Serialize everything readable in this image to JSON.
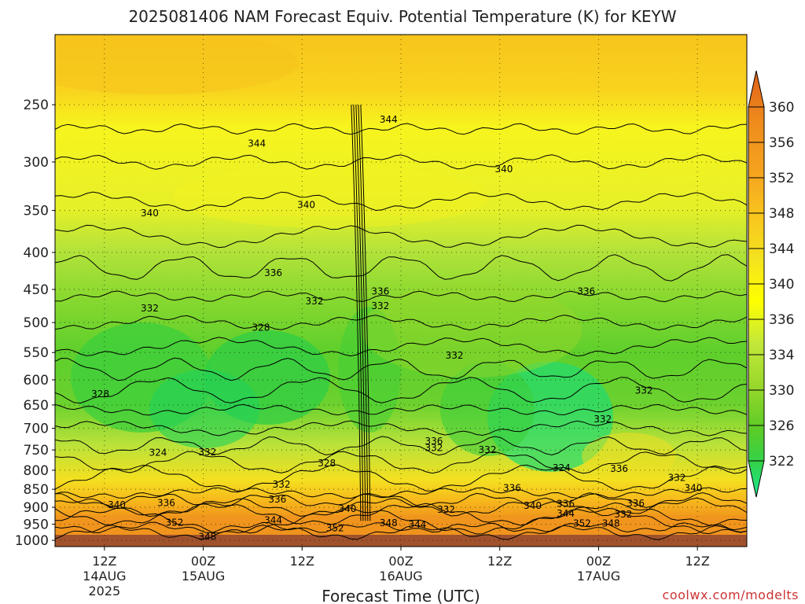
{
  "chart_data": {
    "type": "heatmap",
    "title": "2025081406 NAM Forecast Equiv. Potential Temperature (K) for KEYW",
    "xlabel": "Forecast Time (UTC)",
    "ylabel": "",
    "credit": "coolwx.com/modelts",
    "x_ticks": [
      {
        "hour": 6,
        "line1": "12Z",
        "line2": "14AUG",
        "line3": "2025"
      },
      {
        "hour": 18,
        "line1": "00Z",
        "line2": "15AUG",
        "line3": ""
      },
      {
        "hour": 30,
        "line1": "12Z",
        "line2": "",
        "line3": ""
      },
      {
        "hour": 42,
        "line1": "00Z",
        "line2": "16AUG",
        "line3": ""
      },
      {
        "hour": 54,
        "line1": "12Z",
        "line2": "",
        "line3": ""
      },
      {
        "hour": 66,
        "line1": "00Z",
        "line2": "17AUG",
        "line3": ""
      },
      {
        "hour": 78,
        "line1": "12Z",
        "line2": "",
        "line3": ""
      }
    ],
    "x_range_hours": [
      0,
      84
    ],
    "y_ticks": [
      250,
      300,
      350,
      400,
      450,
      500,
      550,
      600,
      650,
      700,
      750,
      800,
      850,
      900,
      950,
      1000
    ],
    "y_range_hpa": [
      200,
      1020
    ],
    "y_scale": "log-pressure",
    "grid": true,
    "colorbar": {
      "labels": [
        360,
        356,
        352,
        348,
        344,
        340,
        336,
        334,
        330,
        326,
        322
      ],
      "colors": [
        "#e0601a",
        "#ef8c1c",
        "#f5a41e",
        "#f8c51d",
        "#f3e21f",
        "#ffff00",
        "#c2e83a",
        "#98d82a",
        "#5ccc26",
        "#33d24a",
        "#1ee890"
      ]
    },
    "contour_labels": [
      {
        "text": "344",
        "hour": 40.5,
        "p": 262
      },
      {
        "text": "344",
        "hour": 24.5,
        "p": 283
      },
      {
        "text": "340",
        "hour": 54.5,
        "p": 307
      },
      {
        "text": "340",
        "hour": 11.5,
        "p": 353
      },
      {
        "text": "340",
        "hour": 30.5,
        "p": 344
      },
      {
        "text": "336",
        "hour": 26.5,
        "p": 427
      },
      {
        "text": "336",
        "hour": 39.5,
        "p": 453
      },
      {
        "text": "336",
        "hour": 64.5,
        "p": 453
      },
      {
        "text": "332",
        "hour": 11.5,
        "p": 478
      },
      {
        "text": "332",
        "hour": 31.5,
        "p": 467
      },
      {
        "text": "332",
        "hour": 39.5,
        "p": 474
      },
      {
        "text": "328",
        "hour": 25.0,
        "p": 508
      },
      {
        "text": "332",
        "hour": 48.5,
        "p": 555
      },
      {
        "text": "328",
        "hour": 5.5,
        "p": 628
      },
      {
        "text": "332",
        "hour": 71.5,
        "p": 621
      },
      {
        "text": "332",
        "hour": 66.5,
        "p": 680
      },
      {
        "text": "336",
        "hour": 46.0,
        "p": 729
      },
      {
        "text": "332",
        "hour": 46.0,
        "p": 745
      },
      {
        "text": "332",
        "hour": 52.5,
        "p": 750
      },
      {
        "text": "324",
        "hour": 12.5,
        "p": 756
      },
      {
        "text": "332",
        "hour": 18.5,
        "p": 755
      },
      {
        "text": "328",
        "hour": 33.0,
        "p": 782
      },
      {
        "text": "324",
        "hour": 61.5,
        "p": 794
      },
      {
        "text": "336",
        "hour": 68.5,
        "p": 796
      },
      {
        "text": "332",
        "hour": 75.5,
        "p": 819
      },
      {
        "text": "332",
        "hour": 27.5,
        "p": 837
      },
      {
        "text": "336",
        "hour": 55.5,
        "p": 846
      },
      {
        "text": "340",
        "hour": 77.5,
        "p": 846
      },
      {
        "text": "336",
        "hour": 27.0,
        "p": 878
      },
      {
        "text": "336",
        "hour": 70.5,
        "p": 889
      },
      {
        "text": "340",
        "hour": 7.5,
        "p": 893
      },
      {
        "text": "336",
        "hour": 13.5,
        "p": 888
      },
      {
        "text": "340",
        "hour": 58.0,
        "p": 896
      },
      {
        "text": "336",
        "hour": 62.0,
        "p": 890
      },
      {
        "text": "340",
        "hour": 35.5,
        "p": 905
      },
      {
        "text": "332",
        "hour": 47.5,
        "p": 907
      },
      {
        "text": "344",
        "hour": 62.0,
        "p": 918
      },
      {
        "text": "332",
        "hour": 69.0,
        "p": 921
      },
      {
        "text": "344",
        "hour": 26.5,
        "p": 938
      },
      {
        "text": "352",
        "hour": 14.5,
        "p": 945
      },
      {
        "text": "348",
        "hour": 40.5,
        "p": 946
      },
      {
        "text": "344",
        "hour": 44.0,
        "p": 951
      },
      {
        "text": "352",
        "hour": 64.0,
        "p": 948
      },
      {
        "text": "348",
        "hour": 67.5,
        "p": 948
      },
      {
        "text": "352",
        "hour": 34.0,
        "p": 962
      },
      {
        "text": "348",
        "hour": 18.5,
        "p": 988
      }
    ]
  }
}
